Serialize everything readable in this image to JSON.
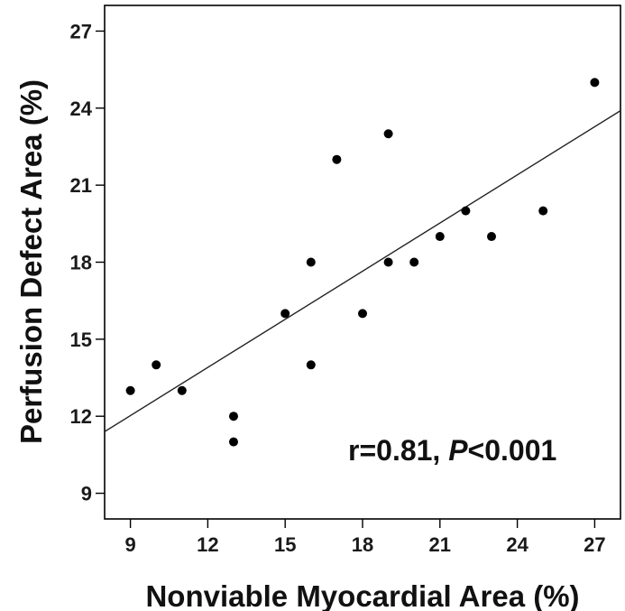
{
  "chart_data": {
    "type": "scatter",
    "xlabel": "Nonviable Myocardial Area (%)",
    "ylabel": "Perfusion Defect Area (%)",
    "xlim": [
      8,
      28
    ],
    "ylim": [
      8,
      28
    ],
    "xticks": [
      9,
      12,
      15,
      18,
      21,
      24,
      27
    ],
    "yticks": [
      9,
      12,
      15,
      18,
      21,
      24,
      27
    ],
    "grid": false,
    "points": [
      {
        "x": 9,
        "y": 13
      },
      {
        "x": 10,
        "y": 14
      },
      {
        "x": 11,
        "y": 13
      },
      {
        "x": 13,
        "y": 12
      },
      {
        "x": 13,
        "y": 11
      },
      {
        "x": 15,
        "y": 16
      },
      {
        "x": 16,
        "y": 18
      },
      {
        "x": 16,
        "y": 14
      },
      {
        "x": 17,
        "y": 22
      },
      {
        "x": 18,
        "y": 16
      },
      {
        "x": 19,
        "y": 23
      },
      {
        "x": 19,
        "y": 18
      },
      {
        "x": 20,
        "y": 18
      },
      {
        "x": 21,
        "y": 19
      },
      {
        "x": 22,
        "y": 20
      },
      {
        "x": 23,
        "y": 19
      },
      {
        "x": 25,
        "y": 20
      },
      {
        "x": 27,
        "y": 25
      }
    ],
    "regression_line": {
      "x": [
        8,
        28
      ],
      "y": [
        11.4,
        23.9
      ]
    },
    "annotation": {
      "r_text": "r=0.81, ",
      "p_symbol": "P",
      "p_text": "<0.001"
    },
    "colors": {
      "point": "#000000",
      "line": "#222222",
      "axis": "#000000"
    }
  }
}
